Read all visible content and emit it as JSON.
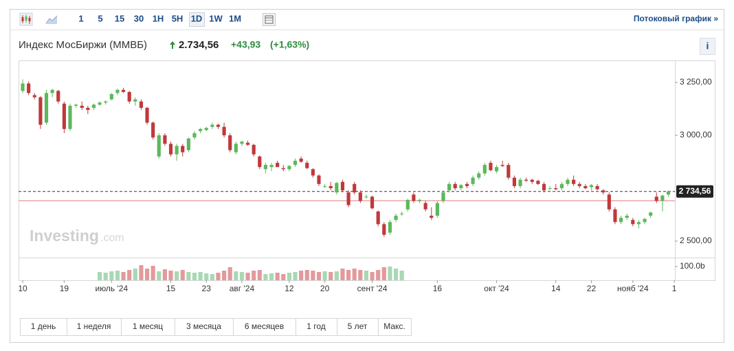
{
  "toolbar": {
    "intervals": [
      "1",
      "5",
      "15",
      "30",
      "1H",
      "5H",
      "1D",
      "1W",
      "1M"
    ],
    "stream_link": "Потоковый график »"
  },
  "header": {
    "title": "Индекс МосБиржи (ММВБ)",
    "price": "2.734,56",
    "change": "+43,93",
    "change_pct": "(+1,63%)",
    "info": "i"
  },
  "watermark": {
    "brand": "Investing",
    "suffix": ".com"
  },
  "ranges": [
    "1 день",
    "1 неделя",
    "1 месяц",
    "3 месяца",
    "6 месяцев",
    "1 год",
    "5 лет",
    "Макс."
  ],
  "chart_data": {
    "type": "candlestick",
    "up_color": "#5cb85c",
    "down_color": "#c0393b",
    "volume_up_color": "#a8d8b4",
    "volume_down_color": "#e39a9c",
    "xlim": [
      -0.7,
      110.1
    ],
    "xticks": [
      {
        "value": 0,
        "label": "10"
      },
      {
        "value": 7,
        "label": "19"
      },
      {
        "value": 15,
        "label": "июль '24"
      },
      {
        "value": 25,
        "label": "15"
      },
      {
        "value": 31,
        "label": "23"
      },
      {
        "value": 37,
        "label": "авг '24"
      },
      {
        "value": 45,
        "label": "12"
      },
      {
        "value": 51,
        "label": "20"
      },
      {
        "value": 59,
        "label": "сент '24"
      },
      {
        "value": 70,
        "label": "16"
      },
      {
        "value": 80,
        "label": "окт '24"
      },
      {
        "value": 90,
        "label": "14"
      },
      {
        "value": 96,
        "label": "22"
      },
      {
        "value": 103,
        "label": "нояб '24"
      },
      {
        "value": 110,
        "label": "1"
      }
    ],
    "ylim": [
      2422,
      3354
    ],
    "yticks": [
      {
        "value": 2500,
        "label": "2 500,00"
      },
      {
        "value": 3000,
        "label": "3 000,00"
      },
      {
        "value": 3250,
        "label": "3 250,00"
      }
    ],
    "last_price_label": "2 734,56",
    "prev_close": 2690.63,
    "open": [
      3210,
      3245,
      3190,
      3180,
      3060,
      3200,
      3210,
      3150,
      3030,
      3140,
      3140,
      3130,
      3130,
      3145,
      3155,
      3170,
      3200,
      3215,
      3205,
      3160,
      3160,
      3130,
      3060,
      2900,
      3000,
      2960,
      2910,
      2950,
      2930,
      2990,
      3020,
      3025,
      3040,
      3050,
      3040,
      3000,
      2920,
      2960,
      2965,
      2955,
      2900,
      2840,
      2850,
      2870,
      2845,
      2840,
      2860,
      2890,
      2870,
      2840,
      2810,
      2760,
      2760,
      2730,
      2780,
      2730,
      2770,
      2730,
      2710,
      2710,
      2640,
      2580,
      2540,
      2600,
      2630,
      2650,
      2720,
      2690,
      2680,
      2620,
      2620,
      2690,
      2740,
      2770,
      2750,
      2770,
      2770,
      2800,
      2820,
      2870,
      2830,
      2860,
      2860,
      2800,
      2760,
      2790,
      2790,
      2785,
      2770,
      2750,
      2750,
      2750,
      2770,
      2790,
      2770,
      2760,
      2755,
      2760,
      2740,
      2720,
      2650,
      2590,
      2610,
      2600,
      2580,
      2590,
      2620,
      2710,
      2690,
      2720
    ],
    "high": [
      3265,
      3255,
      3200,
      3185,
      3215,
      3220,
      3215,
      3160,
      3150,
      3150,
      3160,
      3140,
      3150,
      3160,
      3165,
      3200,
      3220,
      3225,
      3210,
      3180,
      3170,
      3135,
      3065,
      3010,
      3010,
      2970,
      2960,
      2960,
      2990,
      3020,
      3035,
      3040,
      3060,
      3055,
      3060,
      3010,
      2970,
      2975,
      2975,
      2960,
      2905,
      2870,
      2870,
      2880,
      2860,
      2860,
      2890,
      2900,
      2880,
      2845,
      2815,
      2770,
      2780,
      2780,
      2790,
      2740,
      2780,
      2740,
      2720,
      2715,
      2645,
      2590,
      2600,
      2630,
      2640,
      2700,
      2730,
      2700,
      2690,
      2660,
      2690,
      2740,
      2780,
      2780,
      2770,
      2780,
      2810,
      2830,
      2870,
      2880,
      2860,
      2880,
      2870,
      2810,
      2800,
      2800,
      2795,
      2790,
      2780,
      2760,
      2770,
      2780,
      2800,
      2810,
      2780,
      2770,
      2770,
      2770,
      2745,
      2730,
      2660,
      2620,
      2630,
      2610,
      2600,
      2610,
      2640,
      2730,
      2720,
      2740
    ],
    "low": [
      3200,
      3190,
      3170,
      3030,
      3050,
      3180,
      3150,
      3010,
      3020,
      3130,
      3120,
      3100,
      3120,
      3140,
      3145,
      3165,
      3190,
      3200,
      3150,
      3140,
      3120,
      3050,
      2980,
      2890,
      2950,
      2900,
      2880,
      2900,
      2920,
      2980,
      3010,
      3020,
      3030,
      3030,
      2990,
      2920,
      2910,
      2950,
      2950,
      2900,
      2840,
      2820,
      2830,
      2850,
      2830,
      2830,
      2850,
      2870,
      2840,
      2800,
      2760,
      2750,
      2740,
      2720,
      2730,
      2660,
      2720,
      2680,
      2700,
      2650,
      2570,
      2520,
      2530,
      2590,
      2620,
      2640,
      2680,
      2680,
      2640,
      2600,
      2610,
      2680,
      2730,
      2740,
      2740,
      2750,
      2760,
      2790,
      2810,
      2830,
      2820,
      2850,
      2790,
      2750,
      2750,
      2780,
      2770,
      2765,
      2730,
      2740,
      2740,
      2740,
      2760,
      2760,
      2750,
      2745,
      2740,
      2740,
      2720,
      2640,
      2580,
      2580,
      2600,
      2570,
      2560,
      2580,
      2610,
      2680,
      2640,
      2710
    ],
    "close": [
      3245,
      3200,
      3180,
      3050,
      3200,
      3215,
      3160,
      3030,
      3140,
      3145,
      3130,
      3120,
      3145,
      3155,
      3160,
      3195,
      3215,
      3205,
      3160,
      3170,
      3130,
      3060,
      2990,
      3000,
      2960,
      2910,
      2950,
      2920,
      2985,
      3010,
      3030,
      3035,
      3050,
      3040,
      3000,
      2930,
      2960,
      2970,
      2955,
      2910,
      2850,
      2860,
      2860,
      2850,
      2840,
      2855,
      2880,
      2875,
      2845,
      2810,
      2770,
      2760,
      2750,
      2775,
      2740,
      2670,
      2730,
      2690,
      2710,
      2655,
      2580,
      2530,
      2590,
      2620,
      2630,
      2695,
      2690,
      2695,
      2650,
      2610,
      2680,
      2730,
      2770,
      2750,
      2765,
      2760,
      2800,
      2820,
      2860,
      2835,
      2850,
      2855,
      2800,
      2760,
      2790,
      2785,
      2780,
      2770,
      2740,
      2750,
      2745,
      2770,
      2790,
      2770,
      2760,
      2750,
      2765,
      2745,
      2730,
      2650,
      2590,
      2610,
      2620,
      2580,
      2590,
      2605,
      2635,
      2690,
      2715,
      2734.56
    ],
    "volume": [
      null,
      null,
      null,
      null,
      null,
      null,
      null,
      null,
      null,
      null,
      null,
      null,
      null,
      60,
      55,
      65,
      70,
      60,
      75,
      85,
      110,
      85,
      105,
      65,
      80,
      70,
      65,
      75,
      60,
      55,
      60,
      50,
      45,
      55,
      70,
      95,
      65,
      60,
      55,
      70,
      75,
      45,
      50,
      55,
      45,
      55,
      60,
      70,
      75,
      70,
      60,
      65,
      60,
      65,
      85,
      75,
      85,
      75,
      70,
      60,
      75,
      95,
      100,
      85,
      70,
      null,
      null,
      null,
      null,
      null,
      null,
      null,
      null,
      null,
      null,
      null,
      null,
      null,
      null,
      null,
      null,
      null,
      null,
      null,
      null,
      null,
      null,
      null,
      null,
      null,
      null,
      null,
      null,
      null,
      null,
      null,
      null,
      null,
      null,
      null,
      null,
      null,
      null,
      null,
      null,
      null,
      null,
      null,
      null,
      null
    ],
    "vlim": [
      0,
      160
    ],
    "vticks": [
      {
        "value": 100,
        "label": "100.0b"
      }
    ]
  }
}
